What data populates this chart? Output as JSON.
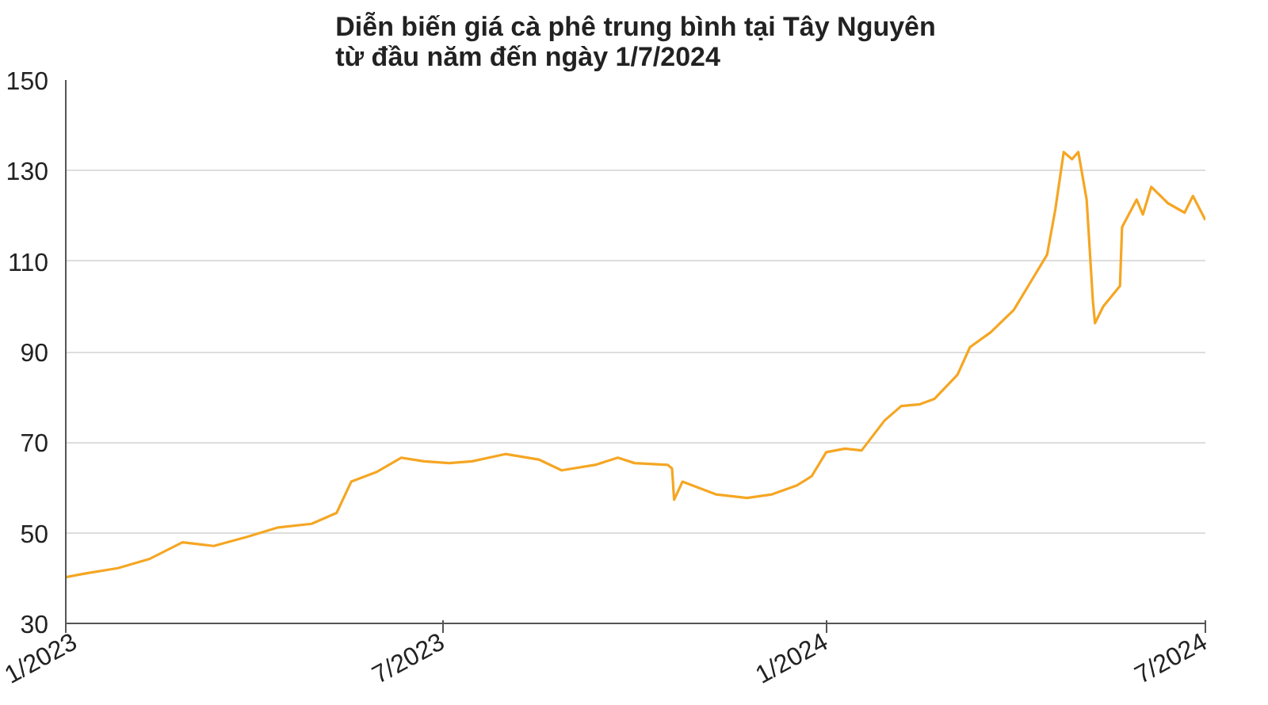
{
  "chart_data": {
    "type": "line",
    "title": "Diễn biến giá cà phê trung bình tại Tây Nguyên\ntừ đầu năm đến ngày 1/7/2024",
    "x": [
      "2023-01-01",
      "2023-01-10",
      "2023-01-26",
      "2023-02-10",
      "2023-02-26",
      "2023-03-13",
      "2023-03-29",
      "2023-04-13",
      "2023-04-29",
      "2023-05-11",
      "2023-05-18",
      "2023-05-30",
      "2023-06-11",
      "2023-06-22",
      "2023-07-04",
      "2023-07-15",
      "2023-07-31",
      "2023-08-16",
      "2023-08-27",
      "2023-09-12",
      "2023-09-23",
      "2023-10-01",
      "2023-10-17",
      "2023-10-19",
      "2023-10-20",
      "2023-10-24",
      "2023-11-09",
      "2023-11-24",
      "2023-12-06",
      "2023-12-18",
      "2023-12-25",
      "2024-01-01",
      "2024-01-10",
      "2024-01-18",
      "2024-01-29",
      "2024-02-06",
      "2024-02-15",
      "2024-02-22",
      "2024-03-04",
      "2024-03-10",
      "2024-03-20",
      "2024-03-31",
      "2024-04-08",
      "2024-04-16",
      "2024-04-20",
      "2024-04-24",
      "2024-04-28",
      "2024-05-01",
      "2024-05-05",
      "2024-05-08",
      "2024-05-09",
      "2024-05-13",
      "2024-05-21",
      "2024-05-22",
      "2024-05-29",
      "2024-06-01",
      "2024-06-05",
      "2024-06-13",
      "2024-06-21",
      "2024-06-25",
      "2024-07-01"
    ],
    "series": [
      {
        "color": "#f5a623",
        "values": [
          40.2,
          41,
          42.2,
          44.2,
          47.9,
          47.1,
          49.1,
          51.2,
          52,
          54.4,
          61.3,
          63.4,
          66.6,
          65.8,
          65.4,
          65.8,
          67.4,
          66.2,
          63.8,
          65,
          66.6,
          65.4,
          65,
          64.2,
          57.3,
          61.3,
          58.5,
          57.7,
          58.5,
          60.5,
          62.5,
          67.8,
          68.6,
          68.2,
          74.8,
          78,
          78.4,
          79.6,
          84.9,
          91,
          94.3,
          99.2,
          105.3,
          111.4,
          121.5,
          134.1,
          132.5,
          134.1,
          123.6,
          101.2,
          96.3,
          100,
          104.5,
          117.5,
          123.6,
          120.3,
          126.4,
          122.8,
          120.7,
          124.4,
          119.1
        ]
      }
    ],
    "xlim": [
      "2023-01-01",
      "2024-07-01"
    ],
    "xticks": [
      {
        "value": "2023-01-01",
        "label": "1/2023"
      },
      {
        "value": "2023-07-01",
        "label": "7/2023"
      },
      {
        "value": "2024-01-01",
        "label": "1/2024"
      },
      {
        "value": "2024-07-01",
        "label": "7/2024"
      }
    ],
    "ylim": [
      30,
      150
    ],
    "yticks": [
      30,
      50,
      70,
      90,
      110,
      130,
      150
    ],
    "grid": "y",
    "marker": "none",
    "line_style": "solid"
  }
}
